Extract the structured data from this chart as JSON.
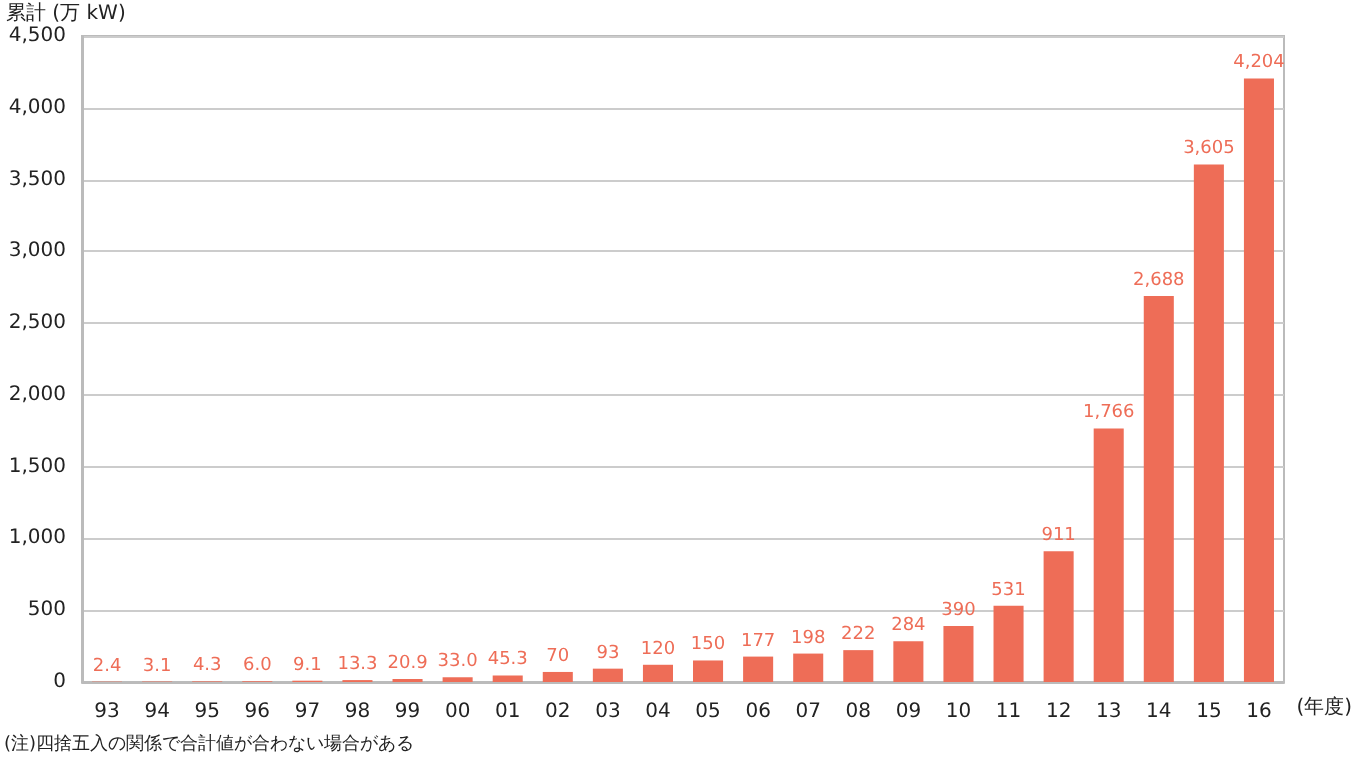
{
  "chart_data": {
    "type": "bar",
    "ylabel": "累計 (万 kW)",
    "xlabel": "(年度)",
    "annotations": [
      "(注)四捨五入の関係で合計値が合わない場合がある"
    ],
    "categories": [
      "93",
      "94",
      "95",
      "96",
      "97",
      "98",
      "99",
      "00",
      "01",
      "02",
      "03",
      "04",
      "05",
      "06",
      "07",
      "08",
      "09",
      "10",
      "11",
      "12",
      "13",
      "14",
      "15",
      "16"
    ],
    "values": [
      2.4,
      3.1,
      4.3,
      6.0,
      9.1,
      13.3,
      20.9,
      33.0,
      45.3,
      70,
      93,
      120,
      150,
      177,
      198,
      222,
      284,
      390,
      531,
      911,
      1766,
      2688,
      3605,
      4204
    ],
    "value_labels": [
      "2.4",
      "3.1",
      "4.3",
      "6.0",
      "9.1",
      "13.3",
      "20.9",
      "33.0",
      "45.3",
      "70",
      "93",
      "120",
      "150",
      "177",
      "198",
      "222",
      "284",
      "390",
      "531",
      "911",
      "1,766",
      "2,688",
      "3,605",
      "4,204"
    ],
    "color": "#ee6d57",
    "ylim": [
      0,
      4500
    ],
    "yticks": [
      0,
      500,
      {
        "value": 1000,
        "label": "1,000"
      },
      {
        "value": 1500,
        "label": "1,500"
      },
      {
        "value": 2000,
        "label": "2,000"
      },
      {
        "value": 2500,
        "label": "2,500"
      },
      {
        "value": 3000,
        "label": "3,000"
      },
      {
        "value": 3500,
        "label": "3,500"
      },
      {
        "value": 4000,
        "label": "4,000"
      },
      {
        "value": 4500,
        "label": "4,500"
      }
    ],
    "grid": "y"
  }
}
